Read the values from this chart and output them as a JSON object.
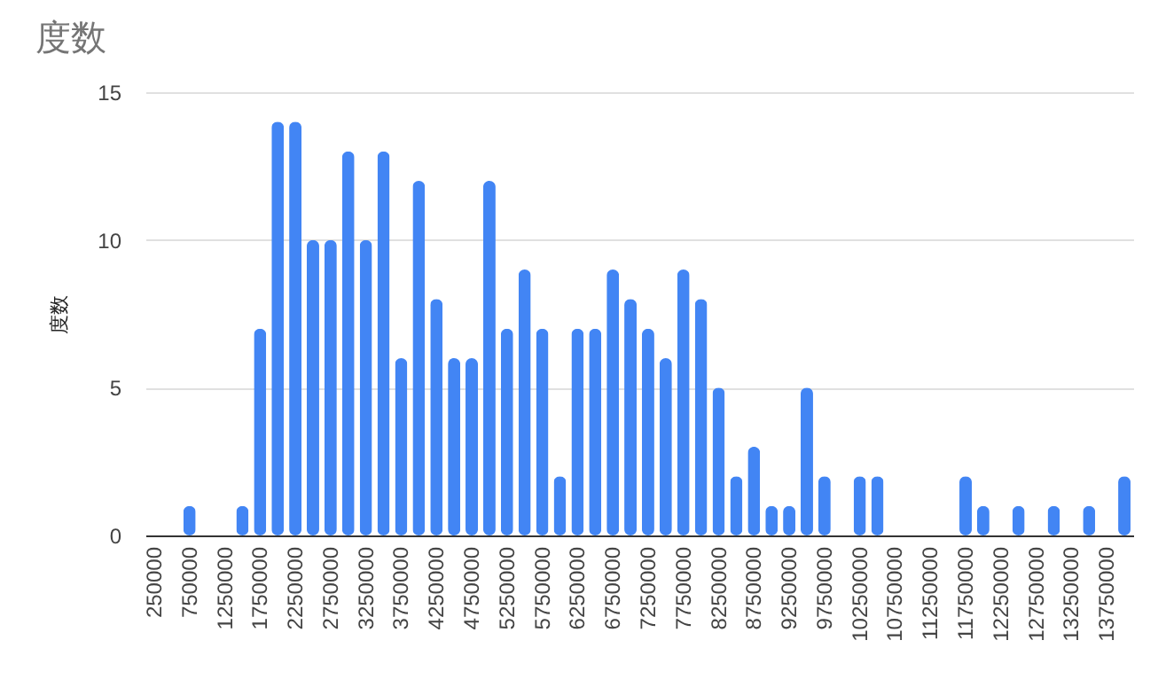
{
  "chart_data": {
    "type": "bar",
    "title": "度数",
    "ylabel": "度数",
    "categories": [
      "250000",
      null,
      "750000",
      null,
      "1250000",
      null,
      "1750000",
      null,
      "2250000",
      null,
      "2750000",
      null,
      "3250000",
      null,
      "3750000",
      null,
      "4250000",
      null,
      "4750000",
      null,
      "5250000",
      null,
      "5750000",
      null,
      "6250000",
      null,
      "6750000",
      null,
      "7250000",
      null,
      "7750000",
      null,
      "8250000",
      null,
      "8750000",
      null,
      "9250000",
      null,
      "9750000",
      null,
      "10250000",
      null,
      "10750000",
      null,
      "11250000",
      null,
      "11750000",
      null,
      "12250000",
      null,
      "12750000",
      null,
      "13250000",
      null,
      "13750000",
      null
    ],
    "values": [
      0,
      0,
      1,
      0,
      0,
      1,
      7,
      14,
      14,
      10,
      10,
      13,
      10,
      13,
      6,
      12,
      8,
      6,
      6,
      12,
      7,
      9,
      7,
      2,
      7,
      7,
      9,
      8,
      7,
      6,
      9,
      8,
      5,
      2,
      3,
      1,
      1,
      5,
      2,
      0,
      2,
      2,
      0,
      0,
      0,
      0,
      2,
      1,
      0,
      1,
      0,
      1,
      0,
      1,
      0,
      2
    ],
    "color": "#4285f4",
    "ylim": [
      0,
      15
    ],
    "yticks": [
      0,
      5,
      10,
      15
    ],
    "grid": "y"
  }
}
